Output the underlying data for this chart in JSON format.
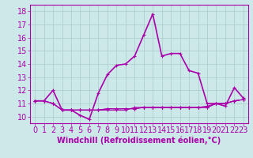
{
  "title": "",
  "xlabel": "Windchill (Refroidissement éolien,°C)",
  "bg_color": "#cce8e8",
  "line_color": "#aa00aa",
  "grid_color": "#aacccc",
  "xlim": [
    -0.5,
    23.5
  ],
  "ylim": [
    9.5,
    18.5
  ],
  "xticks": [
    0,
    1,
    2,
    3,
    4,
    5,
    6,
    7,
    8,
    9,
    10,
    11,
    12,
    13,
    14,
    15,
    16,
    17,
    18,
    19,
    20,
    21,
    22,
    23
  ],
  "yticks": [
    10,
    11,
    12,
    13,
    14,
    15,
    16,
    17,
    18
  ],
  "series": [
    [
      11.2,
      11.2,
      12.0,
      10.5,
      10.5,
      10.1,
      9.8,
      11.8,
      13.2,
      13.9,
      14.0,
      14.6,
      16.2,
      17.8,
      14.6,
      14.8,
      14.8,
      13.5,
      13.3,
      11.0,
      11.0,
      10.8,
      12.2,
      11.4
    ],
    [
      11.2,
      11.2,
      11.0,
      10.5,
      10.5,
      10.5,
      10.5,
      10.5,
      10.5,
      10.5,
      10.5,
      10.7,
      10.7,
      10.7,
      10.7,
      10.7,
      10.7,
      10.7,
      10.7,
      10.7,
      11.0,
      11.0,
      11.2,
      11.3
    ],
    [
      11.2,
      11.2,
      11.0,
      10.5,
      10.5,
      10.5,
      10.5,
      10.5,
      10.6,
      10.6,
      10.6,
      10.6,
      10.7,
      10.7,
      10.7,
      10.7,
      10.7,
      10.7,
      10.7,
      10.8,
      11.0,
      11.0,
      11.2,
      11.3
    ],
    [
      11.2,
      11.2,
      11.0,
      10.5,
      10.5,
      10.5,
      10.5,
      10.5,
      10.6,
      10.6,
      10.6,
      10.6,
      10.7,
      10.7,
      10.7,
      10.7,
      10.7,
      10.7,
      10.7,
      10.7,
      11.0,
      11.0,
      11.2,
      11.3
    ]
  ],
  "tick_fontsize": 7,
  "xlabel_fontsize": 7
}
